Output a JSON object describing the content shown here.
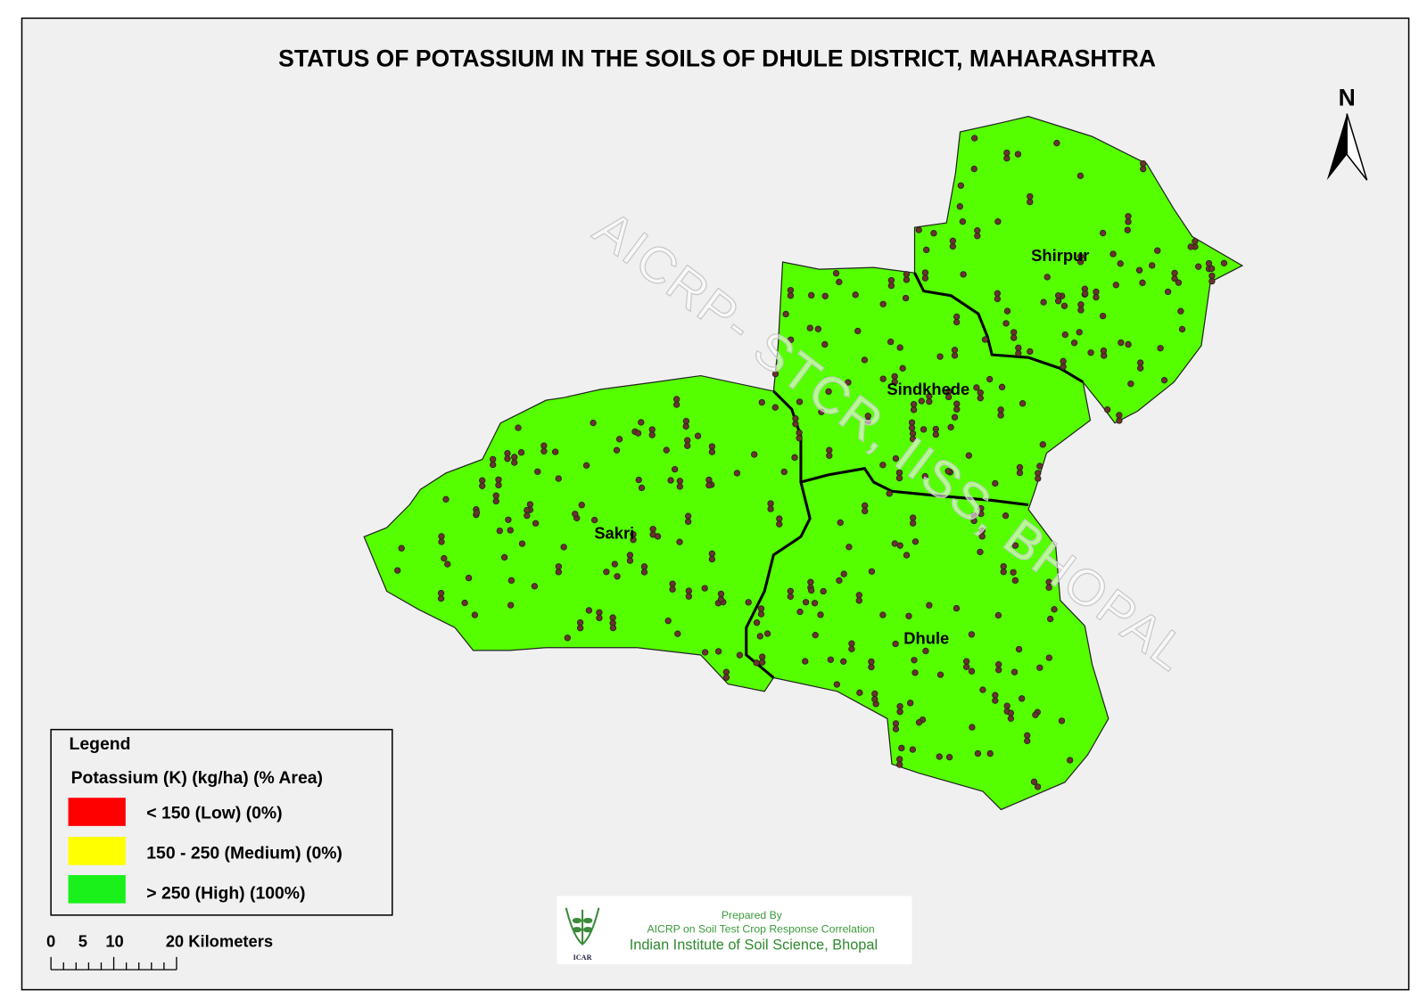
{
  "map": {
    "title": "STATUS OF POTASSIUM IN THE SOILS OF DHULE  DISTRICT, MAHARASHTRA",
    "north_label": "N",
    "watermark": "AICRP- STCR, IISS, BHOPAL",
    "talukas": [
      {
        "name": "Shirpur"
      },
      {
        "name": "Sindkhede"
      },
      {
        "name": "Sakri"
      },
      {
        "name": "Dhule"
      }
    ],
    "fill_color": "#55ff00",
    "sample_point_color": "#6b3328",
    "background_color": "#f0f0f0"
  },
  "legend": {
    "title": "Legend",
    "subtitle": "Potassium (K) (kg/ha) (% Area)",
    "items": [
      {
        "label": "< 150 (Low) (0%)",
        "color": "#ff0000",
        "percent_area": 0
      },
      {
        "label": "150 - 250 (Medium) (0%)",
        "color": "#ffff00",
        "percent_area": 0
      },
      {
        "label": "> 250 (High) (100%)",
        "color": "#00ff00",
        "percent_area": 100
      }
    ]
  },
  "scale_bar": {
    "ticks": [
      "0",
      "5",
      "10",
      "20 Kilometers"
    ]
  },
  "credits": {
    "line1": "Prepared By",
    "line2": "AICRP on Soil Test Crop Response Correlation",
    "line3": "Indian Institute of Soil Science, Bhopal",
    "logo_text": "ICAR"
  }
}
